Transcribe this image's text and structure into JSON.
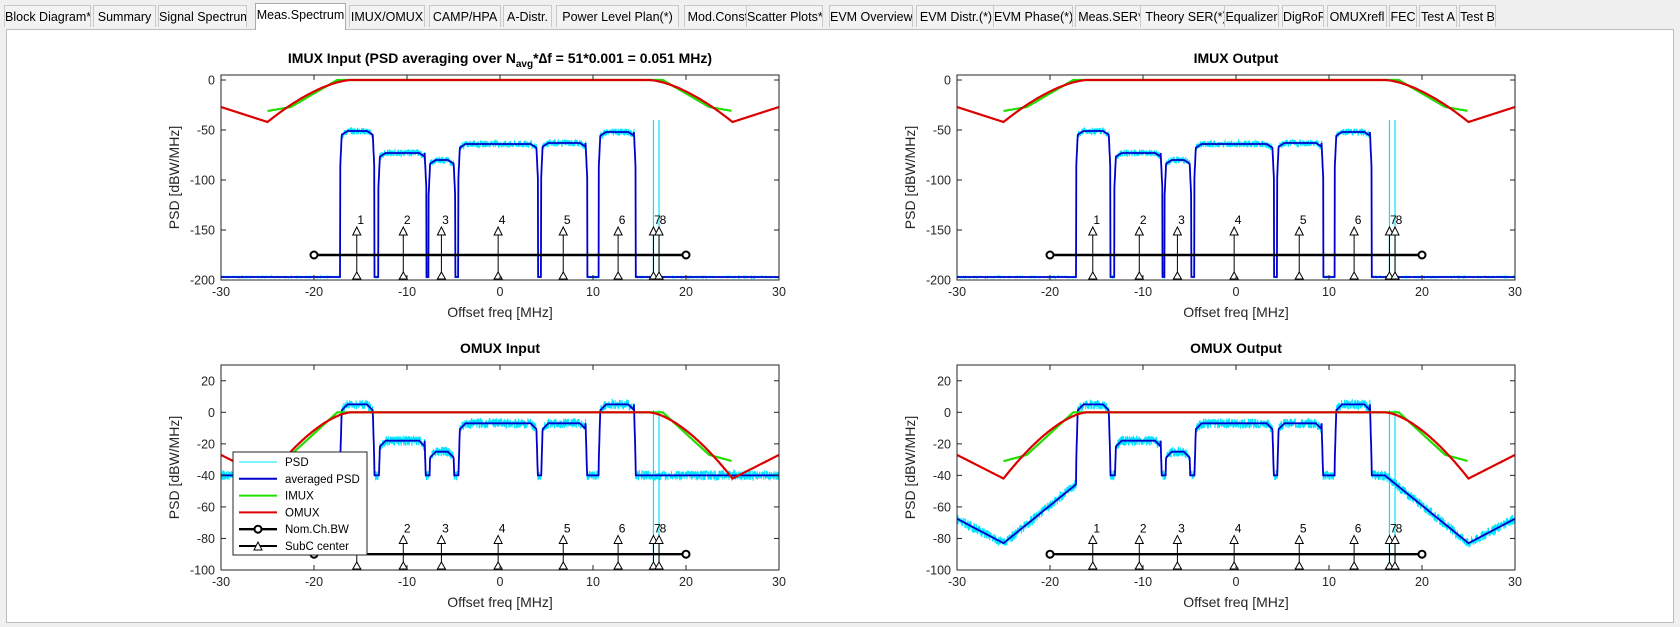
{
  "tabs": [
    {
      "label": "Block Diagram*"
    },
    {
      "label": "Summary"
    },
    {
      "label": "Signal Spectrum"
    },
    {
      "label": "Meas.Spectrum"
    },
    {
      "label": "IMUX/OMUX"
    },
    {
      "label": "CAMP/HPA"
    },
    {
      "label": "A-Distr."
    },
    {
      "label": "Power Level Plan(*)"
    },
    {
      "label": "Mod.Const.*"
    },
    {
      "label": "Scatter Plots*"
    },
    {
      "label": "EVM Overview"
    },
    {
      "label": "EVM Distr.(*)"
    },
    {
      "label": "EVM Phase(*)"
    },
    {
      "label": "Meas.SER*"
    },
    {
      "label": "Theory SER(*)"
    },
    {
      "label": "Equalizer"
    },
    {
      "label": "DigRoF"
    },
    {
      "label": "OMUXrefl"
    },
    {
      "label": "FEC"
    },
    {
      "label": "Test A"
    },
    {
      "label": "Test B"
    }
  ],
  "active_tab": "Meas.Spectrum",
  "chart_data": [
    {
      "type": "line",
      "title_parts": {
        "pre": "IMUX Input   (PSD averaging over N",
        "sub": "avg",
        "post": "*∆f = 51*0.001 = 0.051 MHz)"
      },
      "xlabel": "Offset freq [MHz]",
      "ylabel": "PSD [dBW/MHz]",
      "xlim": [
        -30,
        30
      ],
      "ylim": [
        -200,
        5
      ],
      "xticks": [
        -30,
        -20,
        -10,
        0,
        10,
        20,
        30
      ],
      "yticks": [
        -200,
        -150,
        -100,
        -50,
        0
      ],
      "channels": [
        {
          "x1": -17.0,
          "x2": -13.7,
          "level": -51
        },
        {
          "x1": -12.9,
          "x2": -8.1,
          "level": -73
        },
        {
          "x1": -7.5,
          "x2": -5.0,
          "level": -80
        },
        {
          "x1": -4.3,
          "x2": 3.9,
          "level": -64
        },
        {
          "x1": 4.6,
          "x2": 9.2,
          "level": -63
        },
        {
          "x1": 10.8,
          "x2": 14.4,
          "level": -52
        }
      ],
      "floor": -197,
      "subcarriers": [
        {
          "x": -15.4,
          "label": "1"
        },
        {
          "x": -10.4,
          "label": "2"
        },
        {
          "x": -6.3,
          "label": "3"
        },
        {
          "x": -0.2,
          "label": "4"
        },
        {
          "x": 6.8,
          "label": "5"
        },
        {
          "x": 12.7,
          "label": "6"
        },
        {
          "x": 16.5,
          "label": "7"
        },
        {
          "x": 17.1,
          "label": "8"
        }
      ],
      "sub_y": -150,
      "sub_base": -200,
      "nom_bw": {
        "x1": -20,
        "x2": 20,
        "y": -175
      },
      "narrow_spikes": [
        16.5,
        17.1
      ],
      "legend": false
    },
    {
      "type": "line",
      "title": "IMUX Output",
      "xlabel": "Offset freq [MHz]",
      "ylabel": "PSD [dBW/MHz]",
      "xlim": [
        -30,
        30
      ],
      "ylim": [
        -200,
        5
      ],
      "xticks": [
        -30,
        -20,
        -10,
        0,
        10,
        20,
        30
      ],
      "yticks": [
        -200,
        -150,
        -100,
        -50,
        0
      ],
      "channels": [
        {
          "x1": -17.0,
          "x2": -13.7,
          "level": -51
        },
        {
          "x1": -12.9,
          "x2": -8.1,
          "level": -73
        },
        {
          "x1": -7.5,
          "x2": -5.0,
          "level": -80
        },
        {
          "x1": -4.3,
          "x2": 3.9,
          "level": -64
        },
        {
          "x1": 4.6,
          "x2": 9.2,
          "level": -63
        },
        {
          "x1": 10.8,
          "x2": 14.4,
          "level": -52
        }
      ],
      "floor": -197,
      "subcarriers": [
        {
          "x": -15.4,
          "label": "1"
        },
        {
          "x": -10.4,
          "label": "2"
        },
        {
          "x": -6.3,
          "label": "3"
        },
        {
          "x": -0.2,
          "label": "4"
        },
        {
          "x": 6.8,
          "label": "5"
        },
        {
          "x": 12.7,
          "label": "6"
        },
        {
          "x": 16.5,
          "label": "7"
        },
        {
          "x": 17.1,
          "label": "8"
        }
      ],
      "sub_y": -150,
      "sub_base": -200,
      "nom_bw": {
        "x1": -20,
        "x2": 20,
        "y": -175
      },
      "narrow_spikes": [
        16.5,
        17.1
      ],
      "legend": false
    },
    {
      "type": "line",
      "title": "OMUX Input",
      "xlabel": "Offset freq [MHz]",
      "ylabel": "PSD [dBW/MHz]",
      "xlim": [
        -30,
        30
      ],
      "ylim": [
        -100,
        30
      ],
      "xticks": [
        -30,
        -20,
        -10,
        0,
        10,
        20,
        30
      ],
      "yticks": [
        -100,
        -80,
        -60,
        -40,
        -20,
        0,
        20
      ],
      "channels": [
        {
          "x1": -17.0,
          "x2": -13.7,
          "level": 5
        },
        {
          "x1": -12.9,
          "x2": -8.1,
          "level": -18
        },
        {
          "x1": -7.5,
          "x2": -5.0,
          "level": -25
        },
        {
          "x1": -4.3,
          "x2": 3.9,
          "level": -7
        },
        {
          "x1": 4.6,
          "x2": 9.2,
          "level": -7
        },
        {
          "x1": 10.8,
          "x2": 14.4,
          "level": 5
        }
      ],
      "floor": -40,
      "subcarriers": [
        {
          "x": -15.4,
          "label": "1"
        },
        {
          "x": -10.4,
          "label": "2"
        },
        {
          "x": -6.3,
          "label": "3"
        },
        {
          "x": -0.2,
          "label": "4"
        },
        {
          "x": 6.8,
          "label": "5"
        },
        {
          "x": 12.7,
          "label": "6"
        },
        {
          "x": 16.5,
          "label": "7"
        },
        {
          "x": 17.1,
          "label": "8"
        }
      ],
      "sub_y": -80,
      "sub_base": -100,
      "nom_bw": {
        "x1": -20,
        "x2": 20,
        "y": -90
      },
      "narrow_spikes": [
        16.5,
        17.1
      ],
      "legend": true
    },
    {
      "type": "line",
      "title": "OMUX Output",
      "xlabel": "Offset freq [MHz]",
      "ylabel": "PSD [dBW/MHz]",
      "xlim": [
        -30,
        30
      ],
      "ylim": [
        -100,
        30
      ],
      "xticks": [
        -30,
        -20,
        -10,
        0,
        10,
        20,
        30
      ],
      "yticks": [
        -100,
        -80,
        -60,
        -40,
        -20,
        0,
        20
      ],
      "channels": [
        {
          "x1": -17.0,
          "x2": -13.7,
          "level": 5
        },
        {
          "x1": -12.9,
          "x2": -8.1,
          "level": -18
        },
        {
          "x1": -7.5,
          "x2": -5.0,
          "level": -25
        },
        {
          "x1": -4.3,
          "x2": 3.9,
          "level": -7
        },
        {
          "x1": 4.6,
          "x2": 9.2,
          "level": -7
        },
        {
          "x1": 10.8,
          "x2": 14.4,
          "level": 5
        }
      ],
      "floor_shape": "omux",
      "subcarriers": [
        {
          "x": -15.4,
          "label": "1"
        },
        {
          "x": -10.4,
          "label": "2"
        },
        {
          "x": -6.3,
          "label": "3"
        },
        {
          "x": -0.2,
          "label": "4"
        },
        {
          "x": 6.8,
          "label": "5"
        },
        {
          "x": 12.7,
          "label": "6"
        },
        {
          "x": 16.5,
          "label": "7"
        },
        {
          "x": 17.1,
          "label": "8"
        }
      ],
      "sub_y": -80,
      "sub_base": -100,
      "nom_bw": {
        "x1": -20,
        "x2": 20,
        "y": -90
      },
      "narrow_spikes": [
        16.5,
        17.1
      ],
      "legend": false
    }
  ],
  "legend": {
    "items": [
      {
        "label": "PSD",
        "color": "#00e5ff"
      },
      {
        "label": "averaged PSD",
        "color": "#0000cc"
      },
      {
        "label": "IMUX",
        "color": "#22dd00"
      },
      {
        "label": "OMUX",
        "color": "#dd0000"
      },
      {
        "label": "Nom.Ch.BW",
        "color": "#000000"
      },
      {
        "label": "SubC center",
        "color": "#000000"
      }
    ]
  },
  "colors": {
    "psd": "#00e5ff",
    "avg": "#0000cc",
    "imux": "#22dd00",
    "omux": "#dd0000"
  }
}
